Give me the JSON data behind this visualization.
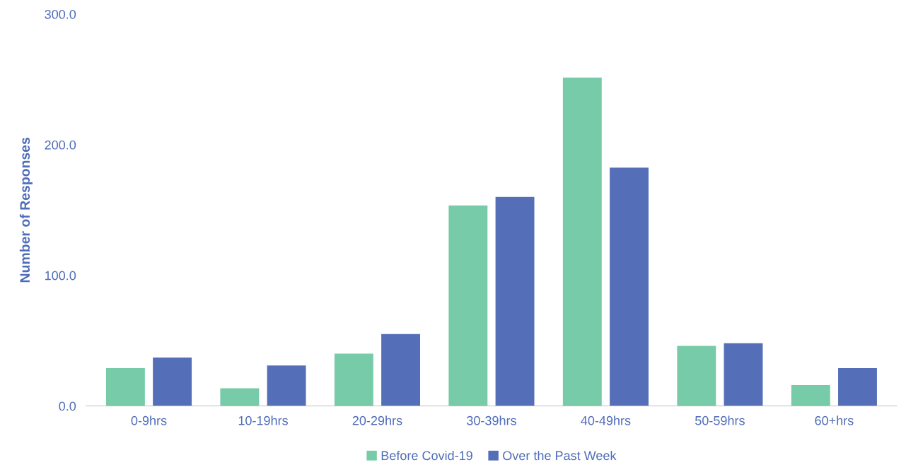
{
  "chart_data": {
    "type": "bar",
    "ylabel": "Number of Responses",
    "categories": [
      "0-9hrs",
      "10-19hrs",
      "20-29hrs",
      "30-39hrs",
      "40-49hrs",
      "50-59hrs",
      "60+hrs"
    ],
    "series": [
      {
        "name": "Before Covid-19",
        "color": "#77cba8",
        "values": [
          29,
          13.5,
          40,
          153.5,
          251.5,
          46,
          16
        ]
      },
      {
        "name": "Over the Past Week",
        "color": "#546fb8",
        "values": [
          37,
          31,
          55,
          160,
          182.5,
          48,
          29
        ]
      }
    ],
    "ylim": [
      0,
      300
    ],
    "yticks": [
      {
        "value": 0,
        "label": "0.0"
      },
      {
        "value": 100,
        "label": "100.0"
      },
      {
        "value": 200,
        "label": "200.0"
      },
      {
        "value": 300,
        "label": "300.0"
      }
    ],
    "grid": false,
    "legend": "bottom"
  }
}
